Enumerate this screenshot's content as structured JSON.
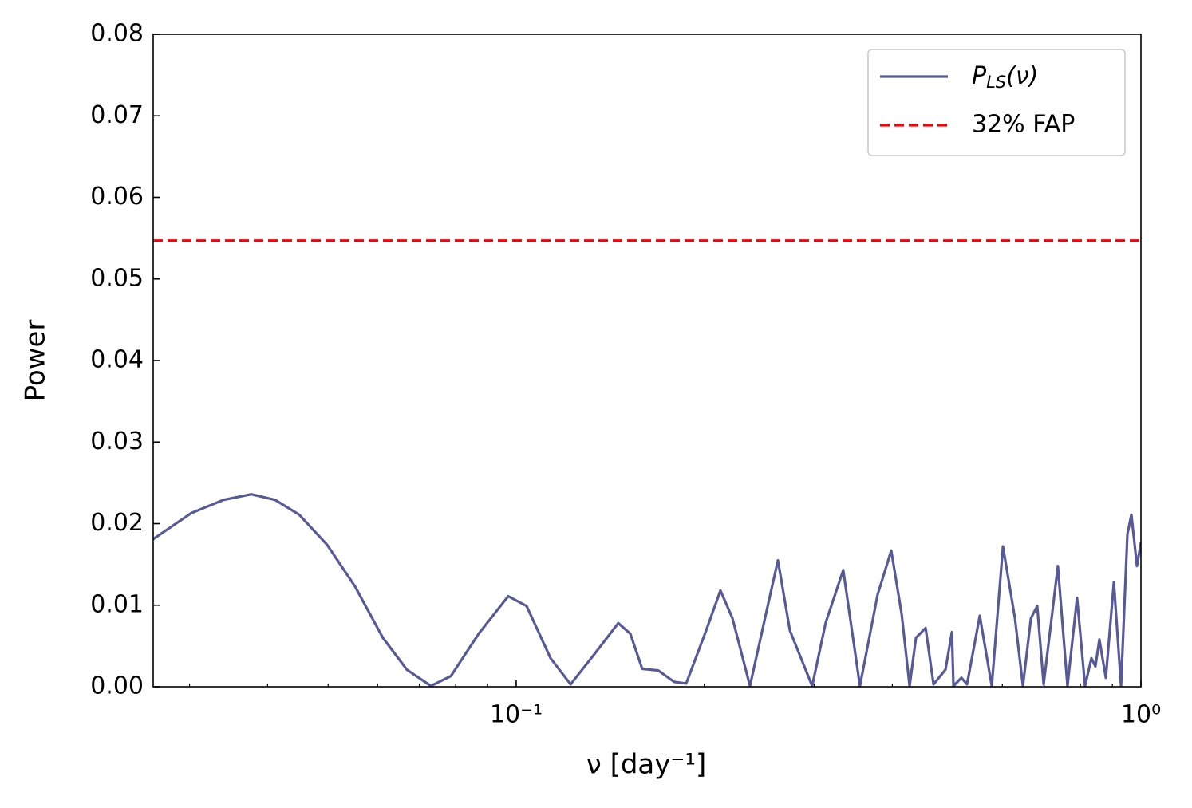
{
  "chart_data": {
    "type": "line",
    "xlabel": "ν [day⁻¹]",
    "ylabel": "Power",
    "xscale": "log",
    "xlim": [
      0.02624,
      1
    ],
    "ylim": [
      0,
      0.08
    ],
    "xticks": [
      {
        "value": 0.1,
        "label": "10⁻¹"
      },
      {
        "value": 1,
        "label": "10⁰"
      }
    ],
    "xminorticks": [
      0.03,
      0.04,
      0.05,
      0.06,
      0.07,
      0.08,
      0.09,
      0.2,
      0.3,
      0.4,
      0.5,
      0.6,
      0.7,
      0.8,
      0.9
    ],
    "yticks": [
      {
        "value": 0,
        "label": "0.00"
      },
      0.01,
      0.02,
      0.03,
      0.04,
      0.05,
      0.06,
      0.07,
      0.08
    ],
    "legend": "upper right",
    "series": [
      {
        "name": "P_LS(ν)",
        "color": "#575a96",
        "x": [
          0.02624,
          0.03021,
          0.03398,
          0.03767,
          0.04115,
          0.04494,
          0.04982,
          0.05521,
          0.06118,
          0.06683,
          0.07302,
          0.07858,
          0.0871,
          0.0971,
          0.1039,
          0.1135,
          0.1222,
          0.1334,
          0.1457,
          0.1523,
          0.1591,
          0.1688,
          0.179,
          0.1871,
          0.2014,
          0.2123,
          0.2219,
          0.2367,
          0.251,
          0.2624,
          0.2742,
          0.2977,
          0.313,
          0.3338,
          0.355,
          0.3789,
          0.3984,
          0.414,
          0.4263,
          0.4364,
          0.4522,
          0.4656,
          0.4866,
          0.4982,
          0.5011,
          0.516,
          0.5268,
          0.5521,
          0.5771,
          0.6014,
          0.6285,
          0.6473,
          0.6667,
          0.6823,
          0.6986,
          0.7363,
          0.7628,
          0.7902,
          0.8138,
          0.8332,
          0.8456,
          0.858,
          0.8786,
          0.905,
          0.9293,
          0.9513,
          0.9654,
          0.9854,
          1
        ],
        "values": [
          0.0181,
          0.0213,
          0.0229,
          0.0236,
          0.0229,
          0.0211,
          0.0174,
          0.0123,
          0.006,
          0.0021,
          0.0001,
          0.0013,
          0.0065,
          0.0111,
          0.0099,
          0.0035,
          0.0003,
          0.004,
          0.0078,
          0.0065,
          0.0022,
          0.002,
          0.0006,
          0.0004,
          0.0069,
          0.0118,
          0.0084,
          0.0001,
          0.0089,
          0.0155,
          0.0069,
          0.0001,
          0.0079,
          0.0143,
          0.0001,
          0.0113,
          0.0167,
          0.0089,
          0.0001,
          0.006,
          0.0072,
          0.0003,
          0.0021,
          0.0067,
          0.0001,
          0.0011,
          0.0003,
          0.0087,
          0.0001,
          0.0172,
          0.0084,
          0.0001,
          0.0084,
          0.0099,
          0.0003,
          0.0148,
          0.0001,
          0.0109,
          0.0001,
          0.0035,
          0.0025,
          0.0058,
          0.0011,
          0.0128,
          0.0001,
          0.0187,
          0.0211,
          0.0148,
          0.0177
        ]
      }
    ],
    "hlines": [
      {
        "name": "32% FAP",
        "y": 0.0547,
        "color": "#ff0000",
        "linestyle": "dashed"
      }
    ]
  }
}
